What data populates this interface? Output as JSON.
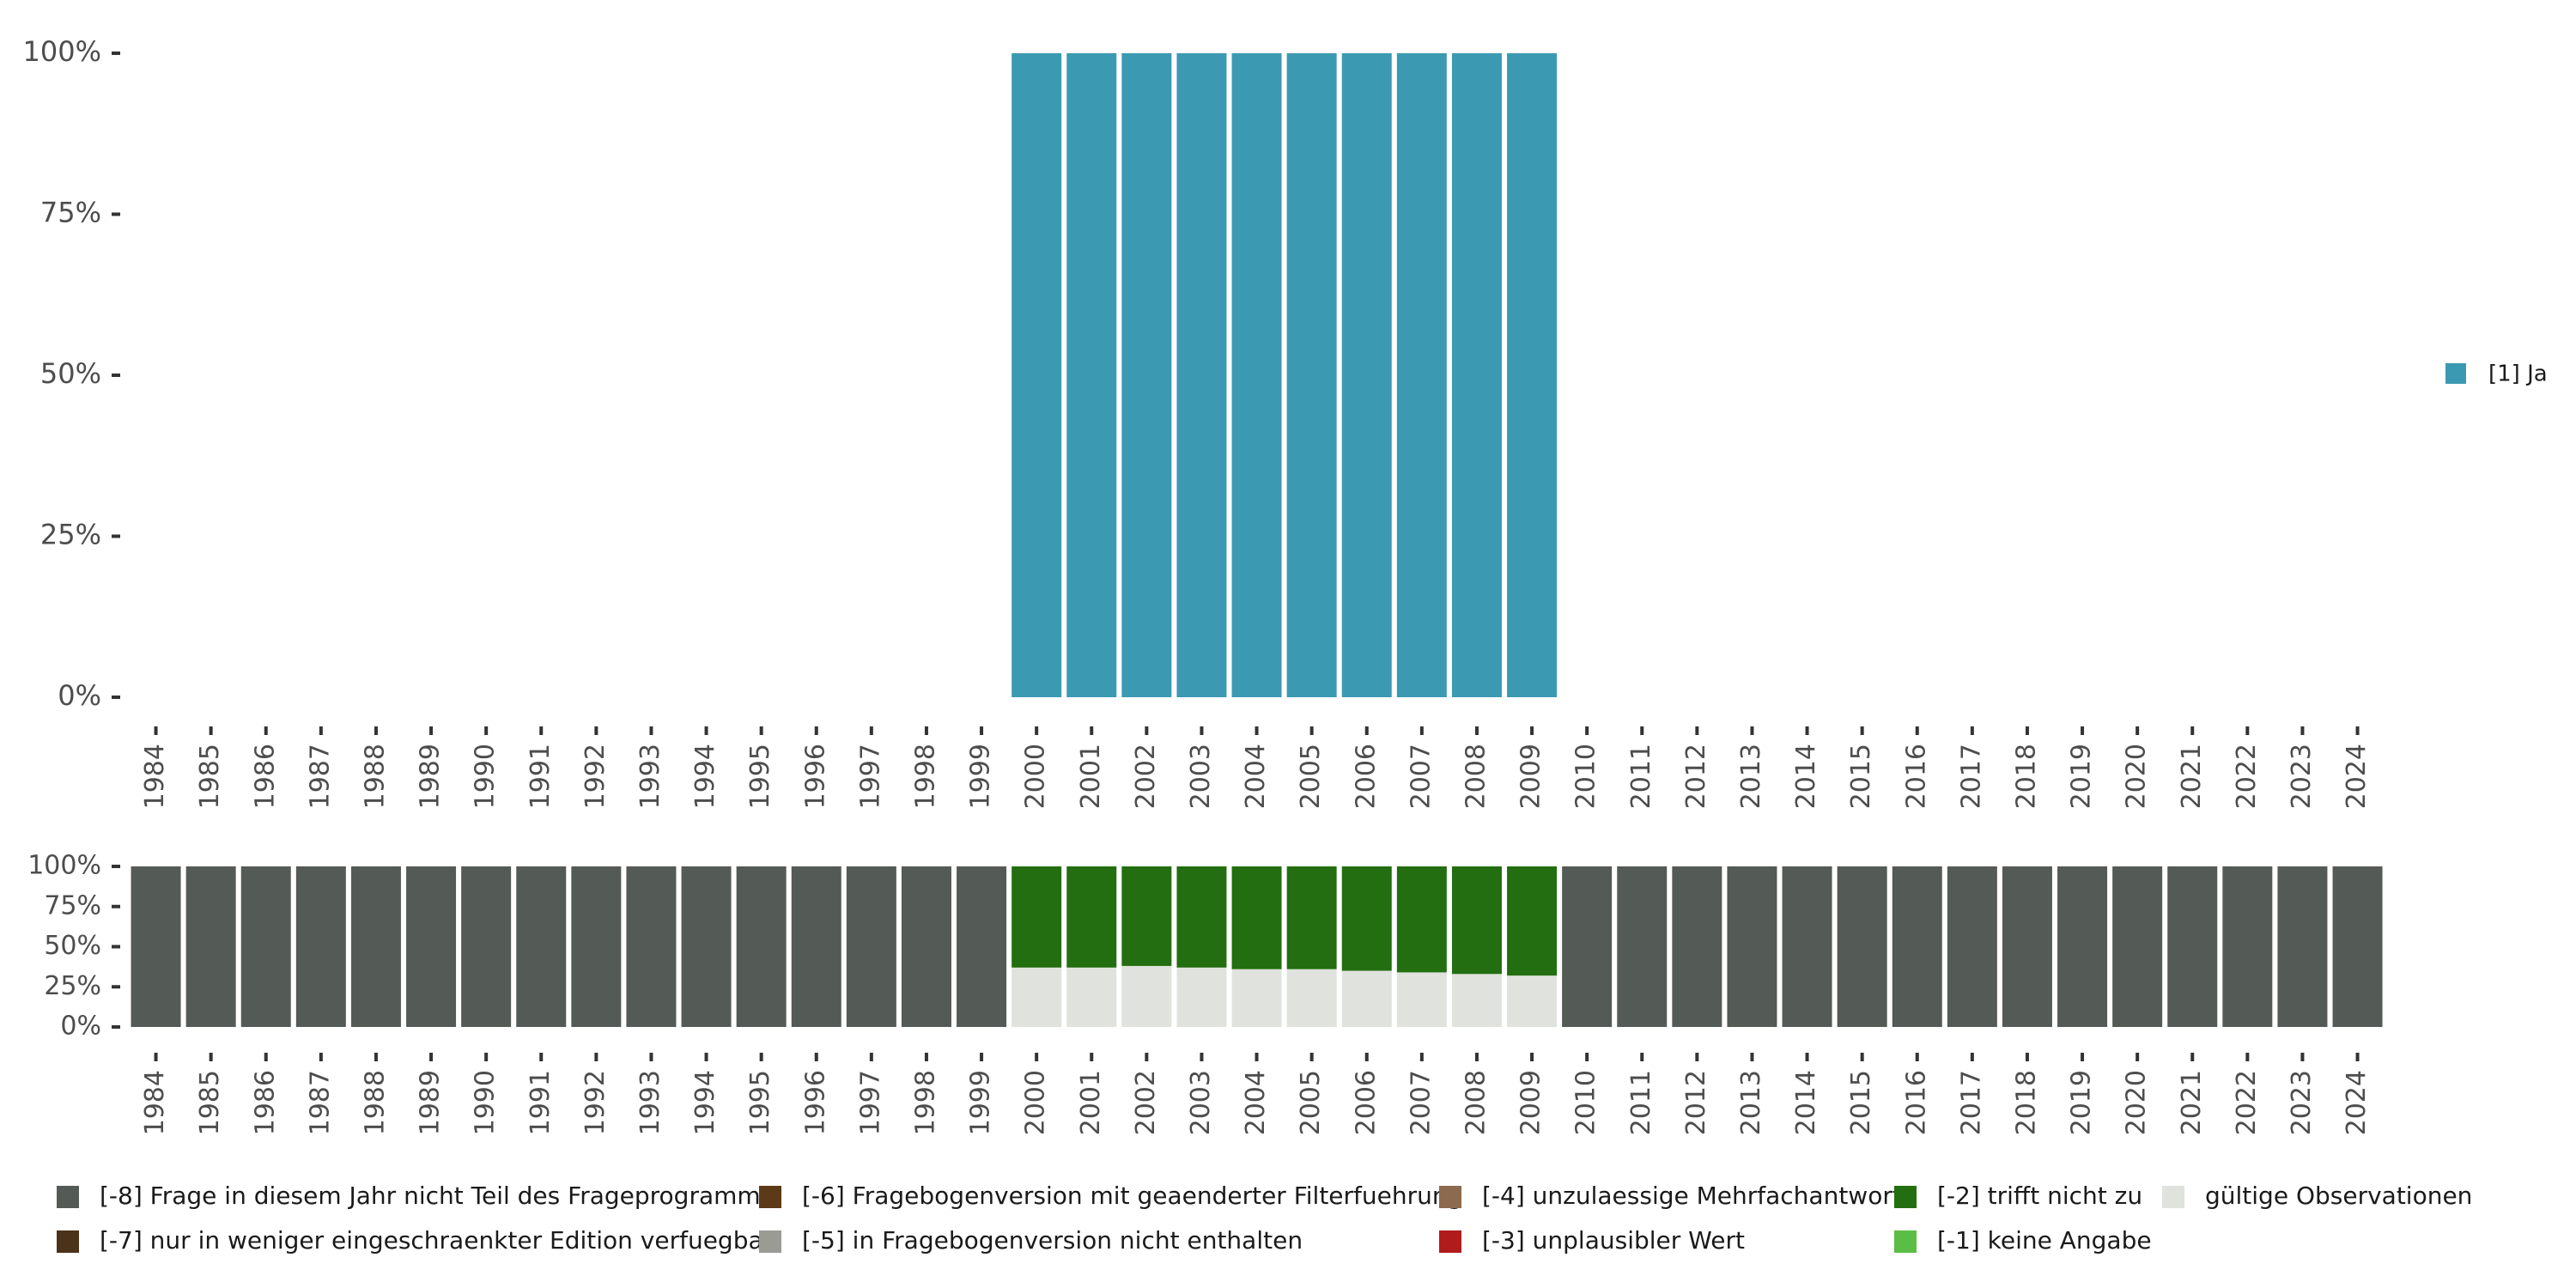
{
  "chart_data": [
    {
      "type": "bar",
      "stacked": true,
      "categories": [
        "1984",
        "1985",
        "1986",
        "1987",
        "1988",
        "1989",
        "1990",
        "1991",
        "1992",
        "1993",
        "1994",
        "1995",
        "1996",
        "1997",
        "1998",
        "1999",
        "2000",
        "2001",
        "2002",
        "2003",
        "2004",
        "2005",
        "2006",
        "2007",
        "2008",
        "2009",
        "2010",
        "2011",
        "2012",
        "2013",
        "2014",
        "2015",
        "2016",
        "2017",
        "2018",
        "2019",
        "2020",
        "2021",
        "2022",
        "2023",
        "2024"
      ],
      "series": [
        {
          "name": "[1] Ja",
          "color": "#3b9ab2",
          "values": [
            0,
            0,
            0,
            0,
            0,
            0,
            0,
            0,
            0,
            0,
            0,
            0,
            0,
            0,
            0,
            0,
            100,
            100,
            100,
            100,
            100,
            100,
            100,
            100,
            100,
            100,
            0,
            0,
            0,
            0,
            0,
            0,
            0,
            0,
            0,
            0,
            0,
            0,
            0,
            0,
            0
          ]
        }
      ],
      "yticks": [
        "0%",
        "25%",
        "50%",
        "75%",
        "100%"
      ],
      "ylim": [
        0,
        100
      ],
      "legend_position": "right",
      "grid": false
    },
    {
      "type": "bar",
      "stacked": true,
      "categories": [
        "1984",
        "1985",
        "1986",
        "1987",
        "1988",
        "1989",
        "1990",
        "1991",
        "1992",
        "1993",
        "1994",
        "1995",
        "1996",
        "1997",
        "1998",
        "1999",
        "2000",
        "2001",
        "2002",
        "2003",
        "2004",
        "2005",
        "2006",
        "2007",
        "2008",
        "2009",
        "2010",
        "2011",
        "2012",
        "2013",
        "2014",
        "2015",
        "2016",
        "2017",
        "2018",
        "2019",
        "2020",
        "2021",
        "2022",
        "2023",
        "2024"
      ],
      "series": [
        {
          "name": "gültige Observationen",
          "color": "#dfe2dd",
          "values": [
            0,
            0,
            0,
            0,
            0,
            0,
            0,
            0,
            0,
            0,
            0,
            0,
            0,
            0,
            0,
            0,
            37,
            37,
            38,
            37,
            36,
            36,
            35,
            34,
            33,
            32,
            0,
            0,
            0,
            0,
            0,
            0,
            0,
            0,
            0,
            0,
            0,
            0,
            0,
            0,
            0
          ]
        },
        {
          "name": "[-2] trifft nicht zu",
          "color": "#236e10",
          "values": [
            0,
            0,
            0,
            0,
            0,
            0,
            0,
            0,
            0,
            0,
            0,
            0,
            0,
            0,
            0,
            0,
            63,
            63,
            62,
            63,
            64,
            64,
            65,
            66,
            67,
            68,
            0,
            0,
            0,
            0,
            0,
            0,
            0,
            0,
            0,
            0,
            0,
            0,
            0,
            0,
            0
          ]
        },
        {
          "name": "[-8] Frage in diesem Jahr nicht Teil des Frageprogramms",
          "color": "#545a55",
          "values": [
            100,
            100,
            100,
            100,
            100,
            100,
            100,
            100,
            100,
            100,
            100,
            100,
            100,
            100,
            100,
            100,
            0,
            0,
            0,
            0,
            0,
            0,
            0,
            0,
            0,
            0,
            100,
            100,
            100,
            100,
            100,
            100,
            100,
            100,
            100,
            100,
            100,
            100,
            100,
            100,
            100
          ]
        }
      ],
      "yticks": [
        "0%",
        "25%",
        "50%",
        "75%",
        "100%"
      ],
      "ylim": [
        0,
        100
      ],
      "legend_position": "bottom",
      "grid": false
    }
  ],
  "legend_bottom": [
    {
      "label": "[-8] Frage in diesem Jahr nicht Teil des Frageprogramms",
      "color": "#545a55"
    },
    {
      "label": "[-7] nur in weniger eingeschraenkter Edition verfuegbar",
      "color": "#4a3318"
    },
    {
      "label": "[-6] Fragebogenversion mit geaenderter Filterfuehrung",
      "color": "#5c3a17"
    },
    {
      "label": "[-5] in Fragebogenversion nicht enthalten",
      "color": "#9a9b95"
    },
    {
      "label": "[-4] unzulaessige Mehrfachantwort",
      "color": "#8c6a50"
    },
    {
      "label": "[-3] unplausibler Wert",
      "color": "#b01c1c"
    },
    {
      "label": "[-2] trifft nicht zu",
      "color": "#236e10"
    },
    {
      "label": "[-1] keine Angabe",
      "color": "#5abe46"
    },
    {
      "label": "gültige Observationen",
      "color": "#dfe2dd"
    }
  ]
}
